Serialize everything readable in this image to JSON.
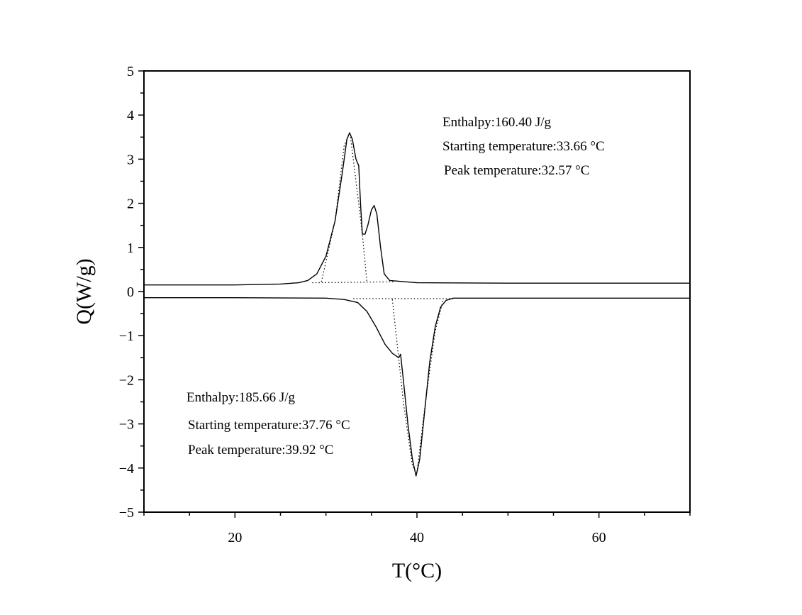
{
  "chart_data": {
    "type": "line",
    "xlabel": "T(°C)",
    "ylabel": "Q(W/g)",
    "xlim": [
      10,
      70
    ],
    "ylim": [
      -5,
      5
    ],
    "grid": false,
    "x_ticks": [
      20,
      40,
      60
    ],
    "x_tick_labels": [
      "20",
      "40",
      "60"
    ],
    "y_ticks": [
      5,
      4,
      3,
      2,
      1,
      0,
      -1,
      -2,
      -3,
      -4,
      -5
    ],
    "y_tick_labels": [
      "5",
      "4",
      "3",
      "2",
      "1",
      "0",
      "−1",
      "−2",
      "−3",
      "−4",
      "−5"
    ],
    "series": [
      {
        "style": "solid",
        "points": [
          [
            10,
            0.15
          ],
          [
            20,
            0.15
          ],
          [
            25,
            0.17
          ],
          [
            27,
            0.2
          ],
          [
            28,
            0.25
          ],
          [
            29,
            0.4
          ],
          [
            30,
            0.8
          ],
          [
            31,
            1.6
          ],
          [
            31.8,
            2.7
          ],
          [
            32.3,
            3.45
          ],
          [
            32.6,
            3.6
          ],
          [
            32.9,
            3.45
          ],
          [
            33.3,
            3.0
          ],
          [
            33.6,
            2.85
          ],
          [
            33.8,
            2.0
          ],
          [
            34.0,
            1.3
          ],
          [
            34.3,
            1.3
          ],
          [
            34.6,
            1.5
          ],
          [
            35.0,
            1.85
          ],
          [
            35.3,
            1.95
          ],
          [
            35.6,
            1.75
          ],
          [
            36.0,
            1.0
          ],
          [
            36.4,
            0.4
          ],
          [
            37,
            0.25
          ],
          [
            40,
            0.2
          ],
          [
            50,
            0.19
          ],
          [
            60,
            0.19
          ],
          [
            70,
            0.19
          ]
        ]
      },
      {
        "style": "solid",
        "points": [
          [
            10,
            -0.14
          ],
          [
            20,
            -0.14
          ],
          [
            30,
            -0.15
          ],
          [
            32,
            -0.18
          ],
          [
            33.5,
            -0.25
          ],
          [
            34.5,
            -0.45
          ],
          [
            35.5,
            -0.8
          ],
          [
            36.5,
            -1.2
          ],
          [
            37.3,
            -1.4
          ],
          [
            38.0,
            -1.5
          ],
          [
            38.2,
            -1.42
          ],
          [
            38.5,
            -2.0
          ],
          [
            39.0,
            -3.0
          ],
          [
            39.5,
            -3.8
          ],
          [
            39.9,
            -4.18
          ],
          [
            40.3,
            -3.8
          ],
          [
            40.8,
            -2.8
          ],
          [
            41.4,
            -1.6
          ],
          [
            42.0,
            -0.8
          ],
          [
            42.6,
            -0.35
          ],
          [
            43.2,
            -0.2
          ],
          [
            44,
            -0.15
          ],
          [
            50,
            -0.15
          ],
          [
            60,
            -0.15
          ],
          [
            70,
            -0.15
          ]
        ]
      },
      {
        "style": "dotted",
        "points": [
          [
            29.5,
            0.22
          ],
          [
            31.0,
            1.6
          ],
          [
            32.0,
            3.3
          ],
          [
            32.5,
            3.55
          ]
        ]
      },
      {
        "style": "dotted",
        "points": [
          [
            32.7,
            3.5
          ],
          [
            33.3,
            2.5
          ],
          [
            34.0,
            1.3
          ],
          [
            34.5,
            0.22
          ]
        ]
      },
      {
        "style": "dotted",
        "points": [
          [
            28.5,
            0.2
          ],
          [
            37.5,
            0.22
          ]
        ]
      },
      {
        "style": "dotted",
        "points": [
          [
            37.3,
            -0.18
          ],
          [
            38.5,
            -2.5
          ],
          [
            39.5,
            -3.95
          ],
          [
            39.9,
            -4.1
          ]
        ]
      },
      {
        "style": "dotted",
        "points": [
          [
            40.0,
            -4.1
          ],
          [
            41.0,
            -2.4
          ],
          [
            42.0,
            -0.9
          ],
          [
            42.9,
            -0.18
          ]
        ]
      },
      {
        "style": "dotted",
        "points": [
          [
            33,
            -0.16
          ],
          [
            44,
            -0.16
          ]
        ]
      }
    ],
    "annotations": [
      {
        "text": "Enthalpy:160.40 J/g"
      },
      {
        "text": "Starting temperature:33.66 °C"
      },
      {
        "text": "Peak temperature:32.57 °C"
      },
      {
        "text": "Enthalpy:185.66 J/g"
      },
      {
        "text": "Starting temperature:37.76 °C"
      },
      {
        "text": "Peak temperature:39.92 °C"
      }
    ]
  }
}
